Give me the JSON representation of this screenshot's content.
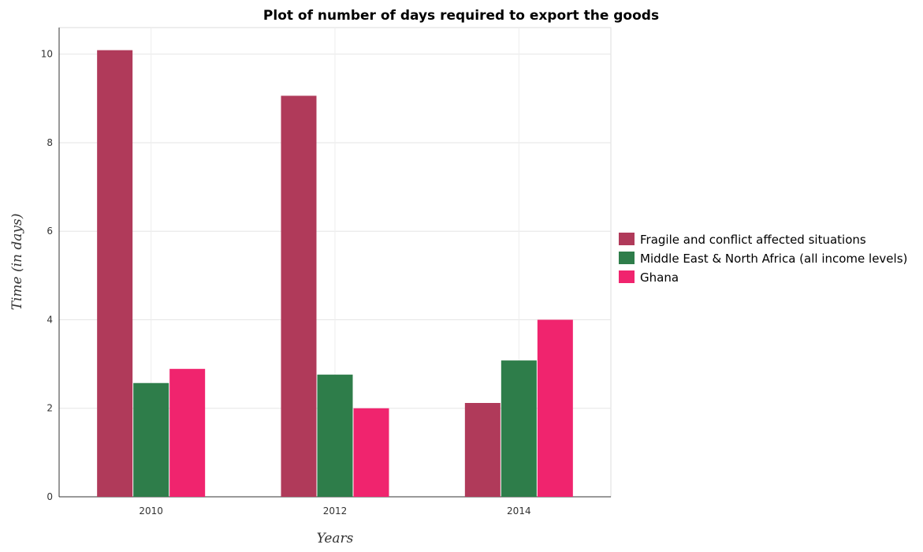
{
  "chart_data": {
    "type": "bar",
    "title": "Plot of number of days required to export the goods",
    "xlabel": "Years",
    "ylabel": "Time (in days)",
    "categories": [
      "2010",
      "2012",
      "2014"
    ],
    "series": [
      {
        "name": "Fragile and conflict affected situations",
        "color": "#b03a5a",
        "values": [
          10.09,
          9.06,
          2.12
        ]
      },
      {
        "name": "Middle East & North Africa (all income levels)",
        "color": "#2e7d4a",
        "values": [
          2.57,
          2.76,
          3.08
        ]
      },
      {
        "name": "Ghana",
        "color": "#f0246e",
        "values": [
          2.89,
          2.0,
          4.0
        ]
      }
    ],
    "ylim": [
      0,
      10.6
    ],
    "yticks": [
      0,
      2,
      4,
      6,
      8,
      10
    ],
    "grid": true,
    "legend_position": "right"
  }
}
